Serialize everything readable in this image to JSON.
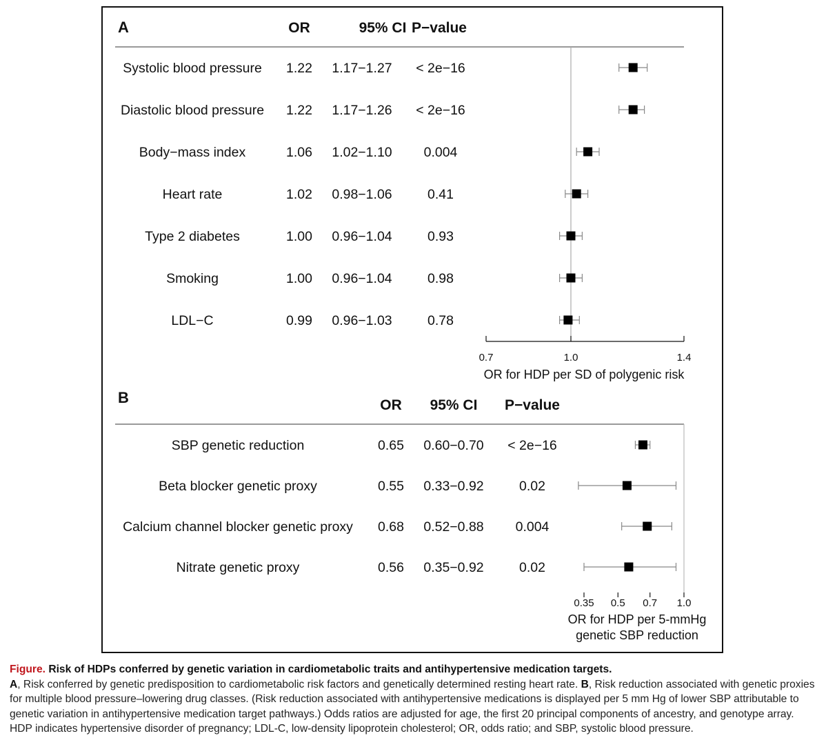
{
  "chart_data": [
    {
      "type": "forest",
      "panel_label": "A",
      "columns": [
        "OR",
        "95% CI",
        "P−value"
      ],
      "rows": [
        {
          "label": "Systolic blood pressure",
          "or": 1.22,
          "lo": 1.17,
          "hi": 1.27,
          "or_text": "1.22",
          "ci_text": "1.17−1.27",
          "p_text": "< 2e−16"
        },
        {
          "label": "Diastolic blood pressure",
          "or": 1.22,
          "lo": 1.17,
          "hi": 1.26,
          "or_text": "1.22",
          "ci_text": "1.17−1.26",
          "p_text": "< 2e−16"
        },
        {
          "label": "Body−mass index",
          "or": 1.06,
          "lo": 1.02,
          "hi": 1.1,
          "or_text": "1.06",
          "ci_text": "1.02−1.10",
          "p_text": "0.004"
        },
        {
          "label": "Heart rate",
          "or": 1.02,
          "lo": 0.98,
          "hi": 1.06,
          "or_text": "1.02",
          "ci_text": "0.98−1.06",
          "p_text": "0.41"
        },
        {
          "label": "Type 2 diabetes",
          "or": 1.0,
          "lo": 0.96,
          "hi": 1.04,
          "or_text": "1.00",
          "ci_text": "0.96−1.04",
          "p_text": "0.93"
        },
        {
          "label": "Smoking",
          "or": 1.0,
          "lo": 0.96,
          "hi": 1.04,
          "or_text": "1.00",
          "ci_text": "0.96−1.04",
          "p_text": "0.98"
        },
        {
          "label": "LDL−C",
          "or": 0.99,
          "lo": 0.96,
          "hi": 1.03,
          "or_text": "0.99",
          "ci_text": "0.96−1.03",
          "p_text": "0.78"
        }
      ],
      "x_ticks": [
        0.7,
        1.0,
        1.4
      ],
      "x_tick_labels": [
        "0.7",
        "1.0",
        "1.4"
      ],
      "xlim": [
        0.7,
        1.4
      ],
      "x_scale": "linear",
      "reference_line": 1.0,
      "xlabel": [
        "OR for HDP per SD of polygenic risk"
      ]
    },
    {
      "type": "forest",
      "panel_label": "B",
      "columns": [
        "OR",
        "95% CI",
        "P−value"
      ],
      "rows": [
        {
          "label": "SBP genetic reduction",
          "or": 0.65,
          "lo": 0.6,
          "hi": 0.7,
          "or_text": "0.65",
          "ci_text": "0.60−0.70",
          "p_text": "< 2e−16"
        },
        {
          "label": "Beta blocker genetic proxy",
          "or": 0.55,
          "lo": 0.33,
          "hi": 0.92,
          "or_text": "0.55",
          "ci_text": "0.33−0.92",
          "p_text": "0.02"
        },
        {
          "label": "Calcium channel blocker genetic proxy",
          "or": 0.68,
          "lo": 0.52,
          "hi": 0.88,
          "or_text": "0.68",
          "ci_text": "0.52−0.88",
          "p_text": "0.004"
        },
        {
          "label": "Nitrate genetic proxy",
          "or": 0.56,
          "lo": 0.35,
          "hi": 0.92,
          "or_text": "0.56",
          "ci_text": "0.35−0.92",
          "p_text": "0.02"
        }
      ],
      "x_ticks": [
        0.35,
        0.5,
        0.7,
        1.0
      ],
      "x_tick_labels": [
        "0.35",
        "0.5",
        "0.7",
        "1.0"
      ],
      "xlim": [
        0.35,
        1.0
      ],
      "x_scale": "log",
      "reference_line": 1.0,
      "xlabel": [
        "OR for HDP per 5-mmHg",
        "genetic SBP reduction"
      ]
    }
  ],
  "caption": {
    "label": "Figure.",
    "title": "Risk of HDPs conferred by genetic variation in cardiometabolic traits and antihypertensive medication targets.",
    "panel_a_letter": "A",
    "panel_a_text": ", Risk conferred by genetic predisposition to cardiometabolic risk factors and genetically determined resting heart rate. ",
    "panel_b_letter": "B",
    "panel_b_text": ", Risk reduction associated with genetic proxies for multiple blood pressure–lowering drug classes. (Risk reduction associated with antihypertensive medications is displayed per 5 mm Hg of lower SBP attributable to genetic variation in antihypertensive medication target pathways.) Odds ratios are adjusted for age, the first 20 principal components of ancestry, and genotype array. HDP indicates hypertensive disorder of pregnancy; LDL-C, low-density lipoprotein cholesterol; OR, odds ratio; and SBP, systolic blood pressure."
  }
}
